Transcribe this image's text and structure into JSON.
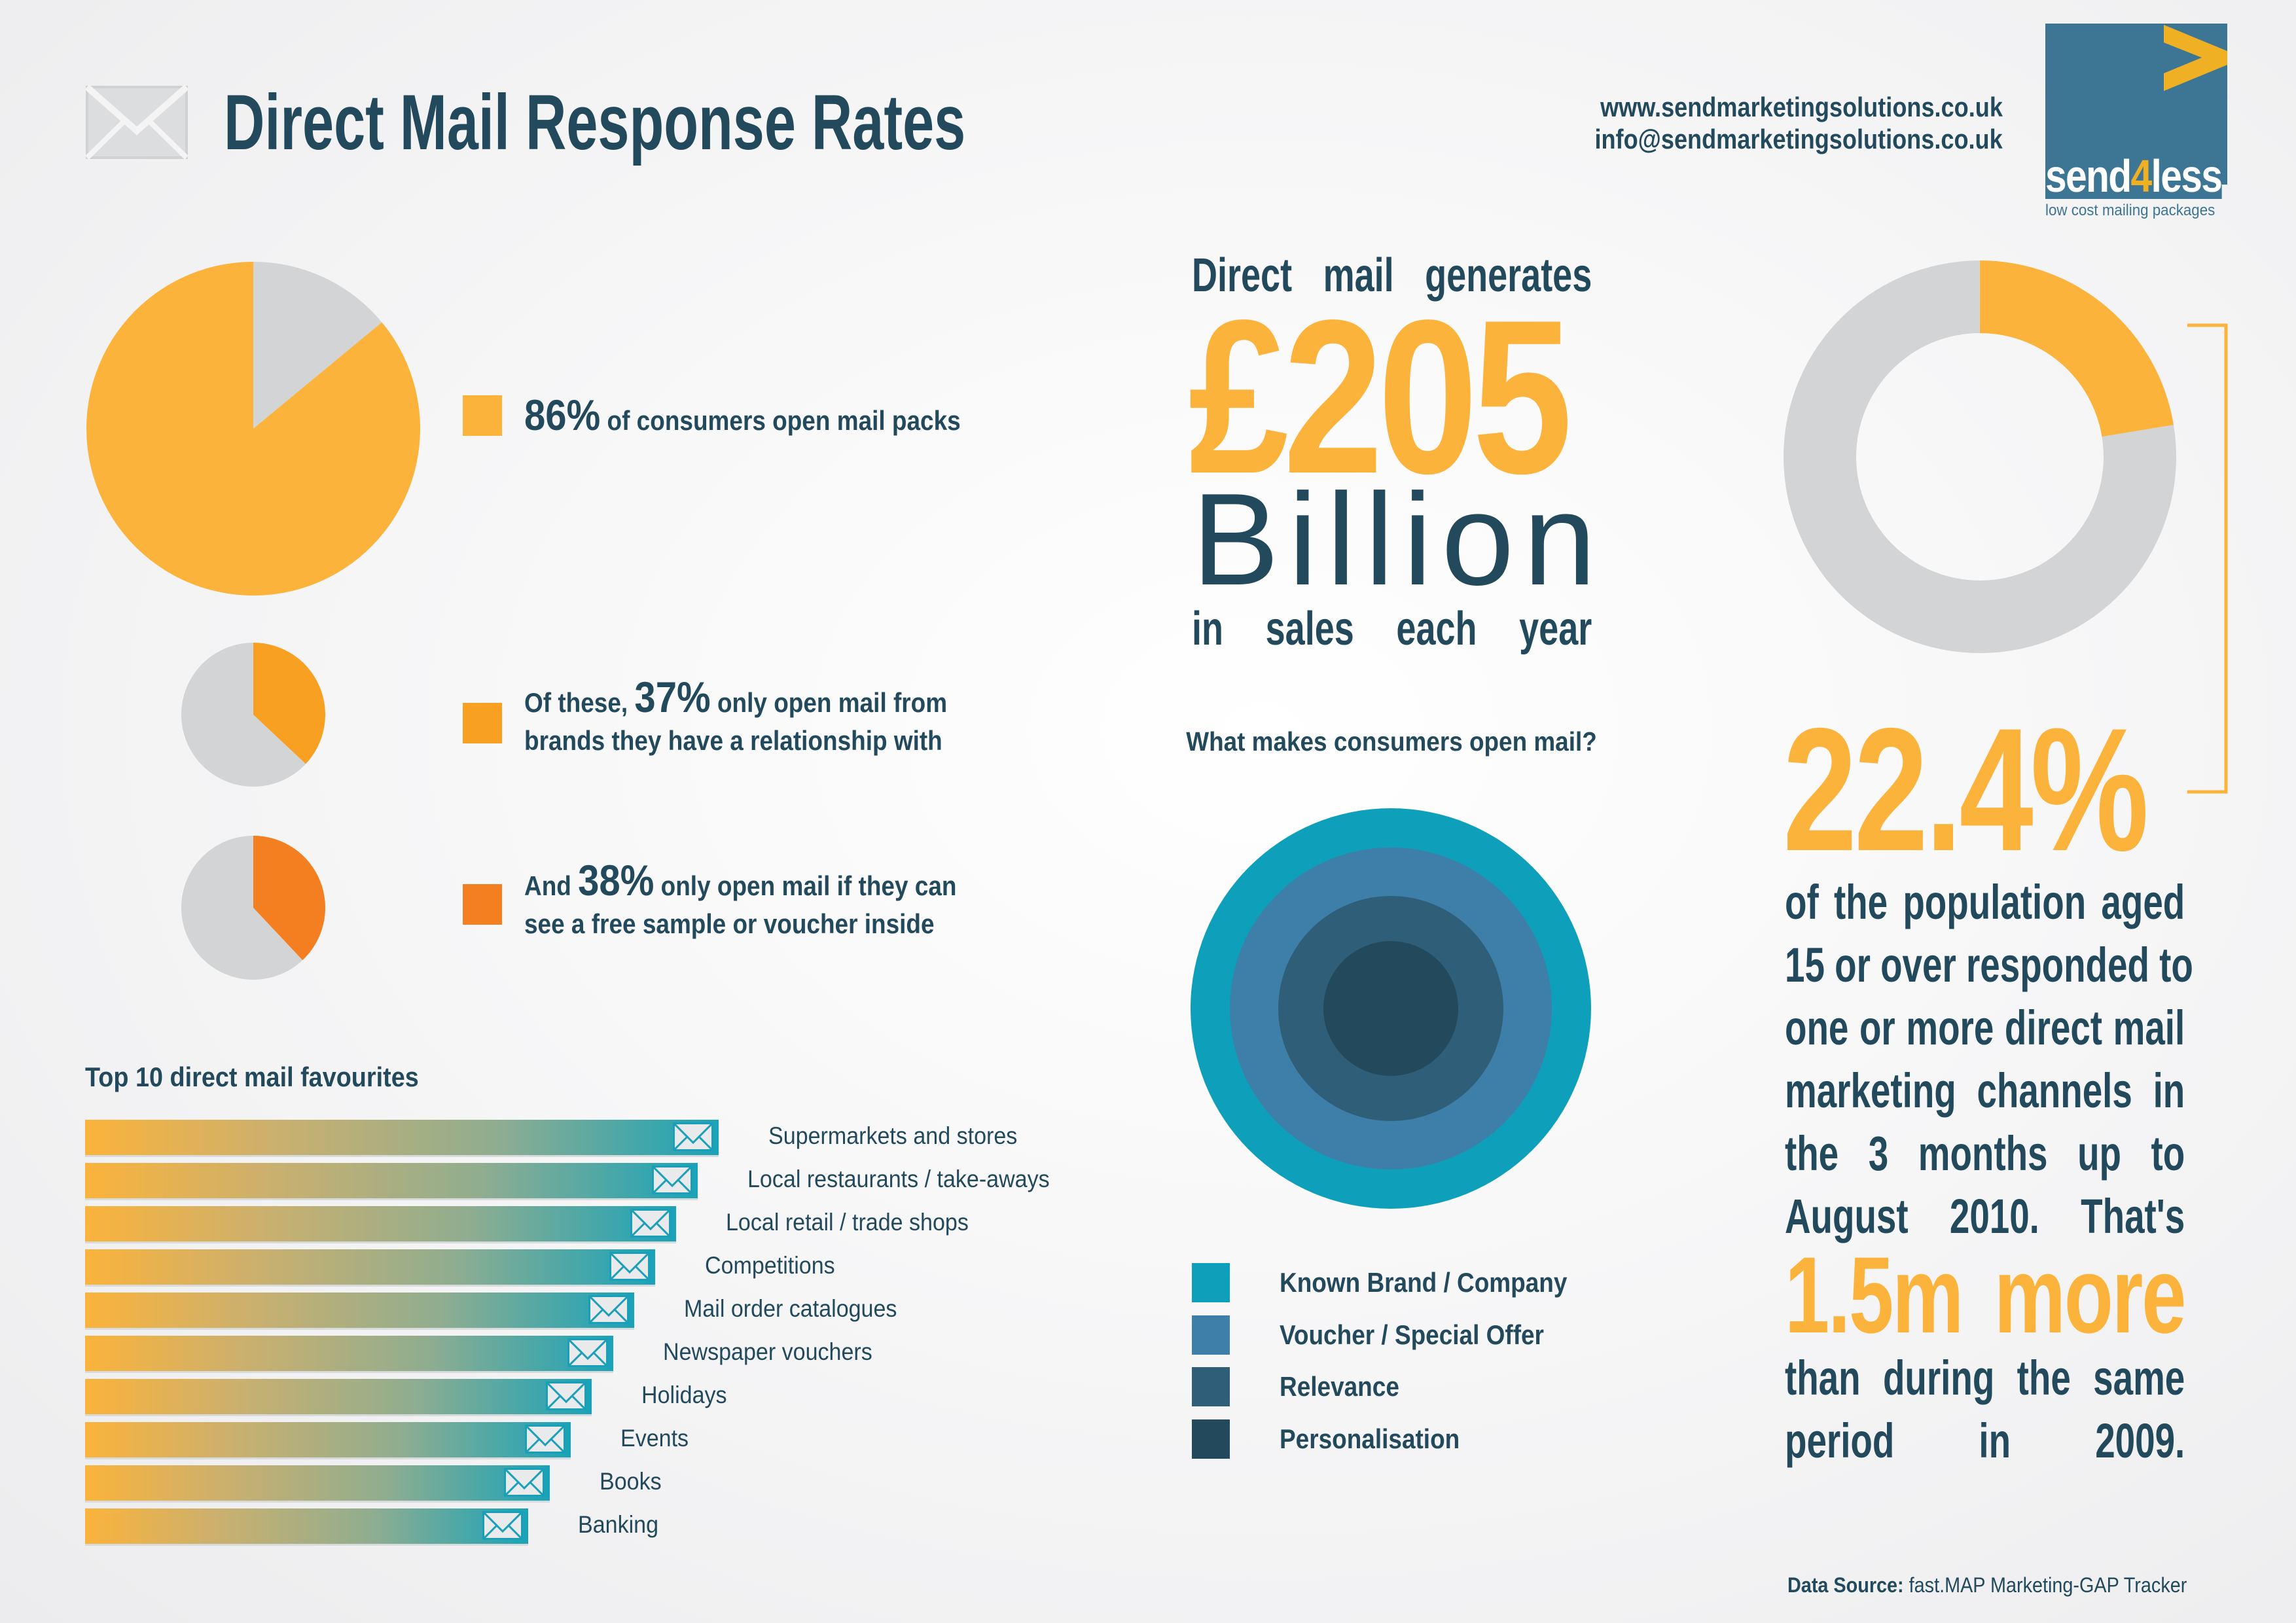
{
  "header": {
    "title": "Direct Mail Response Rates",
    "website": "www.sendmarketingsolutions.co.uk",
    "email": "info@sendmarketingsolutions.co.uk",
    "logo": {
      "name": "send4less",
      "tagline": "low cost mailing packages"
    }
  },
  "colors": {
    "yellow": "#fbb33b",
    "orange": "#f8a021",
    "dark_orange": "#f47f20",
    "grey": "#d3d4d6",
    "navy": "#234a5c"
  },
  "pies": [
    {
      "percent": 86,
      "big": "86%",
      "text": "of consumers open mail packs",
      "color": "#fbb33b"
    },
    {
      "percent": 37,
      "pre": "Of these,",
      "big": "37%",
      "text": "only open mail from",
      "line2": "brands they have a relationship with",
      "color": "#f8a021"
    },
    {
      "percent": 38,
      "pre": "And",
      "big": "38%",
      "text": "only open mail if they can",
      "line2": "see a free sample or voucher inside",
      "color": "#f47f20"
    }
  ],
  "favourites": {
    "title": "Top 10 direct mail favourites",
    "items": [
      "Supermarkets and stores",
      "Local restaurants / take-aways",
      "Local retail / trade shops",
      "Competitions",
      "Mail order catalogues",
      "Newspaper vouchers",
      "Holidays",
      "Events",
      "Books",
      "Banking"
    ]
  },
  "sales": {
    "line1": [
      "Direct",
      "mail",
      "generates"
    ],
    "amount": "£205",
    "unit": "Billion",
    "line3": [
      "in",
      "sales",
      "each",
      "year"
    ]
  },
  "open_mail": {
    "title": "What makes consumers open mail?",
    "items": [
      {
        "label": "Known Brand / Company",
        "color": "#0e9fba"
      },
      {
        "label": "Voucher / Special Offer",
        "color": "#3d7fa8"
      },
      {
        "label": "Relevance",
        "color": "#2f5f78"
      },
      {
        "label": "Personalisation",
        "color": "#22495c"
      }
    ]
  },
  "response": {
    "percent": 22.4,
    "big": "22.4%",
    "lines": [
      "of the population aged",
      "15 or over responded to",
      "one or more direct mail",
      "marketing channels in",
      "the 3 months up to",
      "August 2010. That's"
    ],
    "highlight": "1.5m more",
    "lines2": [
      "than during the same",
      "period in 2009."
    ]
  },
  "source": {
    "label": "Data Source:",
    "value": "fast.MAP Marketing-GAP Tracker"
  }
}
